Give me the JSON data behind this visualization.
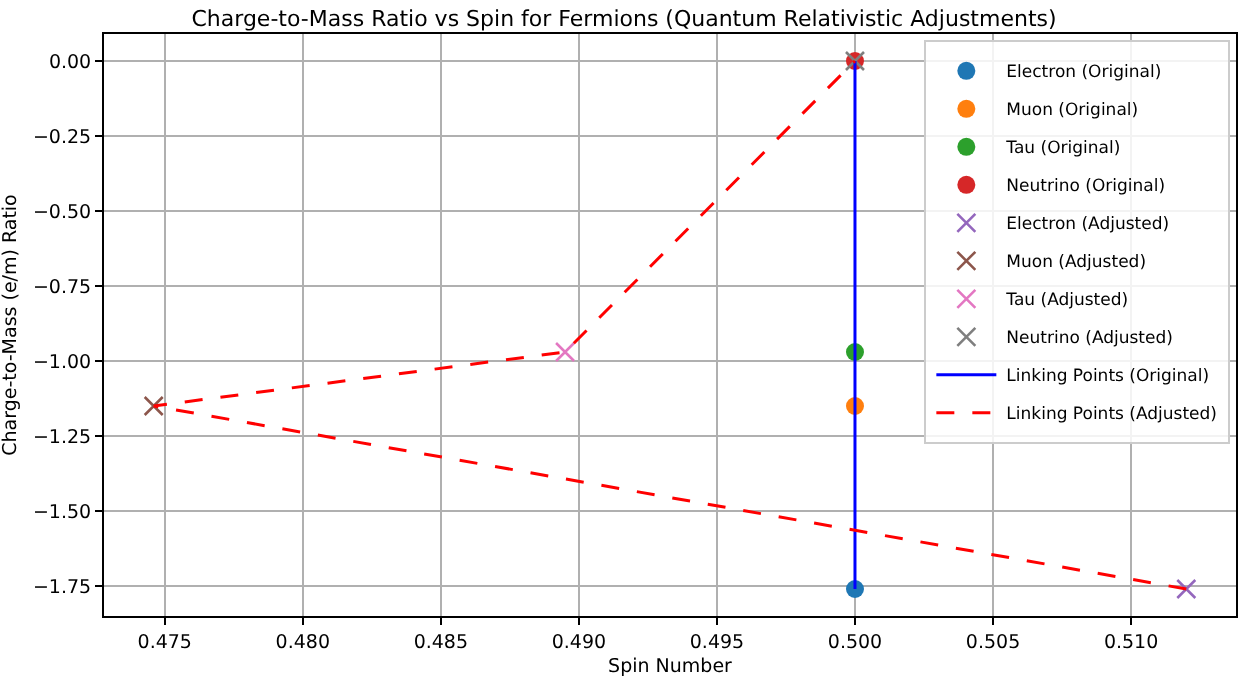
{
  "chart_data": {
    "type": "scatter",
    "title": "Charge-to-Mass Ratio vs Spin for Fermions (Quantum Relativistic Adjustments)",
    "xlabel": "Spin Number",
    "ylabel": "Charge-to-Mass (e/m) Ratio",
    "xlim": [
      0.4728,
      0.5138
    ],
    "xticks": [
      {
        "value": 0.475,
        "label": "0.475"
      },
      {
        "value": 0.48,
        "label": "0.480"
      },
      {
        "value": 0.485,
        "label": "0.485"
      },
      {
        "value": 0.49,
        "label": "0.490"
      },
      {
        "value": 0.495,
        "label": "0.495"
      },
      {
        "value": 0.5,
        "label": "0.500"
      },
      {
        "value": 0.505,
        "label": "0.505"
      },
      {
        "value": 0.51,
        "label": "0.510"
      }
    ],
    "ylim": [
      -1.85,
      0.09
    ],
    "yticks": [
      {
        "value": -1.75,
        "label": "−1.75"
      },
      {
        "value": -1.5,
        "label": "−1.50"
      },
      {
        "value": -1.25,
        "label": "−1.25"
      },
      {
        "value": -1,
        "label": "−1.00"
      },
      {
        "value": -0.75,
        "label": "−0.75"
      },
      {
        "value": -0.5,
        "label": "−0.50"
      },
      {
        "value": -0.25,
        "label": "−0.25"
      },
      {
        "value": 0,
        "label": "0.00"
      }
    ],
    "grid": true,
    "legend": "top right",
    "series": [
      {
        "name": "Electron (Original)",
        "type": "scatter",
        "marker": "circle",
        "color": "#1f77b4",
        "x": [
          0.5
        ],
        "values": [
          -1.76
        ]
      },
      {
        "name": "Muon (Original)",
        "type": "scatter",
        "marker": "circle",
        "color": "#ff7f0e",
        "x": [
          0.5
        ],
        "values": [
          -1.15
        ]
      },
      {
        "name": "Tau (Original)",
        "type": "scatter",
        "marker": "circle",
        "color": "#2ca02c",
        "x": [
          0.5
        ],
        "values": [
          -0.97
        ]
      },
      {
        "name": "Neutrino (Original)",
        "type": "scatter",
        "marker": "circle",
        "color": "#d62728",
        "x": [
          0.5
        ],
        "values": [
          0
        ]
      },
      {
        "name": "Electron (Adjusted)",
        "type": "scatter",
        "marker": "cross",
        "color": "#9467bd",
        "x": [
          0.512
        ],
        "values": [
          -1.76
        ]
      },
      {
        "name": "Muon (Adjusted)",
        "type": "scatter",
        "marker": "cross",
        "color": "#8c564b",
        "x": [
          0.4746
        ],
        "values": [
          -1.15
        ]
      },
      {
        "name": "Tau (Adjusted)",
        "type": "scatter",
        "marker": "cross",
        "color": "#e377c2",
        "x": [
          0.4895
        ],
        "values": [
          -0.97
        ]
      },
      {
        "name": "Neutrino (Adjusted)",
        "type": "scatter",
        "marker": "cross",
        "color": "#7f7f7f",
        "x": [
          0.5
        ],
        "values": [
          0
        ]
      },
      {
        "name": "Linking Points (Original)",
        "type": "line",
        "marker": "none",
        "line_style": "solid",
        "color": "#0000ff",
        "x": [
          0.5,
          0.5,
          0.5,
          0.5
        ],
        "values": [
          -1.76,
          -1.15,
          -0.97,
          0
        ]
      },
      {
        "name": "Linking Points (Adjusted)",
        "type": "line",
        "marker": "none",
        "line_style": "dashed",
        "color": "#ff0000",
        "x": [
          0.512,
          0.4746,
          0.4895,
          0.5
        ],
        "values": [
          -1.76,
          -1.15,
          -0.97,
          0
        ]
      }
    ]
  }
}
